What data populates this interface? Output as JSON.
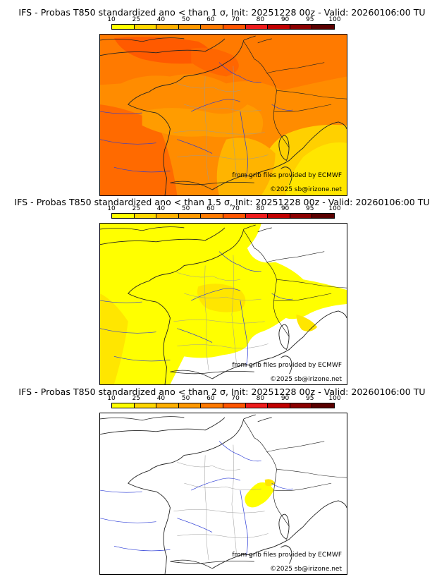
{
  "scale": {
    "ticks": [
      "10",
      "25",
      "40",
      "50",
      "60",
      "70",
      "80",
      "90",
      "95",
      "100"
    ],
    "colors": [
      "#ffff00",
      "#ffd700",
      "#ffb000",
      "#ff9800",
      "#ff7a00",
      "#ff5500",
      "#ee1c1c",
      "#c00000",
      "#8b0000",
      "#5a0000"
    ]
  },
  "panels": [
    {
      "title": "IFS - Probas T850  standardized ano < than 1 σ, Init: 20251228 00z - Valid: 20260106:00 TU",
      "credit_source": "from grib files provided by ECMWF",
      "credit_copyright": "©2025 sb@irizone.net"
    },
    {
      "title": "IFS - Probas T850  standardized ano < than 1.5 σ, Init: 20251228 00z - Valid: 20260106:00 TU",
      "credit_source": "from grib files provided by ECMWF",
      "credit_copyright": "©2025 sb@irizone.net"
    },
    {
      "title": "IFS - Probas T850  standardized ano < than 2 σ, Init: 20251228 00z - Valid: 20260106:00 TU",
      "credit_source": "from grib files provided by ECMWF",
      "credit_copyright": "©2025 sb@irizone.net"
    }
  ]
}
